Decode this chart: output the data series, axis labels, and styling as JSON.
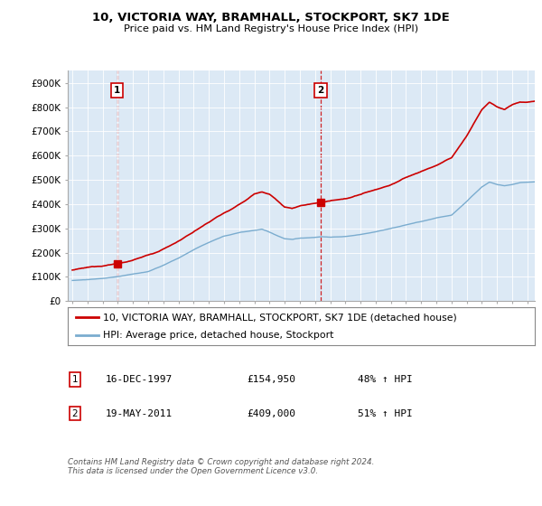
{
  "title": "10, VICTORIA WAY, BRAMHALL, STOCKPORT, SK7 1DE",
  "subtitle": "Price paid vs. HM Land Registry's House Price Index (HPI)",
  "property_label": "10, VICTORIA WAY, BRAMHALL, STOCKPORT, SK7 1DE (detached house)",
  "hpi_label": "HPI: Average price, detached house, Stockport",
  "annotation1": {
    "num": "1",
    "date": "16-DEC-1997",
    "price": "£154,950",
    "change": "48% ↑ HPI",
    "year": 1997.96
  },
  "annotation2": {
    "num": "2",
    "date": "19-MAY-2011",
    "price": "£409,000",
    "change": "51% ↑ HPI",
    "year": 2011.38
  },
  "footnote": "Contains HM Land Registry data © Crown copyright and database right 2024.\nThis data is licensed under the Open Government Licence v3.0.",
  "property_color": "#cc0000",
  "hpi_color": "#7aaccf",
  "annotation_color": "#cc0000",
  "background_color": "#ffffff",
  "plot_bg_color": "#dce9f5",
  "grid_color": "#ffffff",
  "ylim": [
    0,
    950000
  ],
  "yticks": [
    0,
    100000,
    200000,
    300000,
    400000,
    500000,
    600000,
    700000,
    800000,
    900000
  ],
  "ytick_labels": [
    "£0",
    "£100K",
    "£200K",
    "£300K",
    "£400K",
    "£500K",
    "£600K",
    "£700K",
    "£800K",
    "£900K"
  ],
  "xlim": [
    1994.7,
    2025.5
  ],
  "m1_year": 1997.96,
  "m1_price": 154950,
  "m2_year": 2011.38,
  "m2_price": 409000
}
